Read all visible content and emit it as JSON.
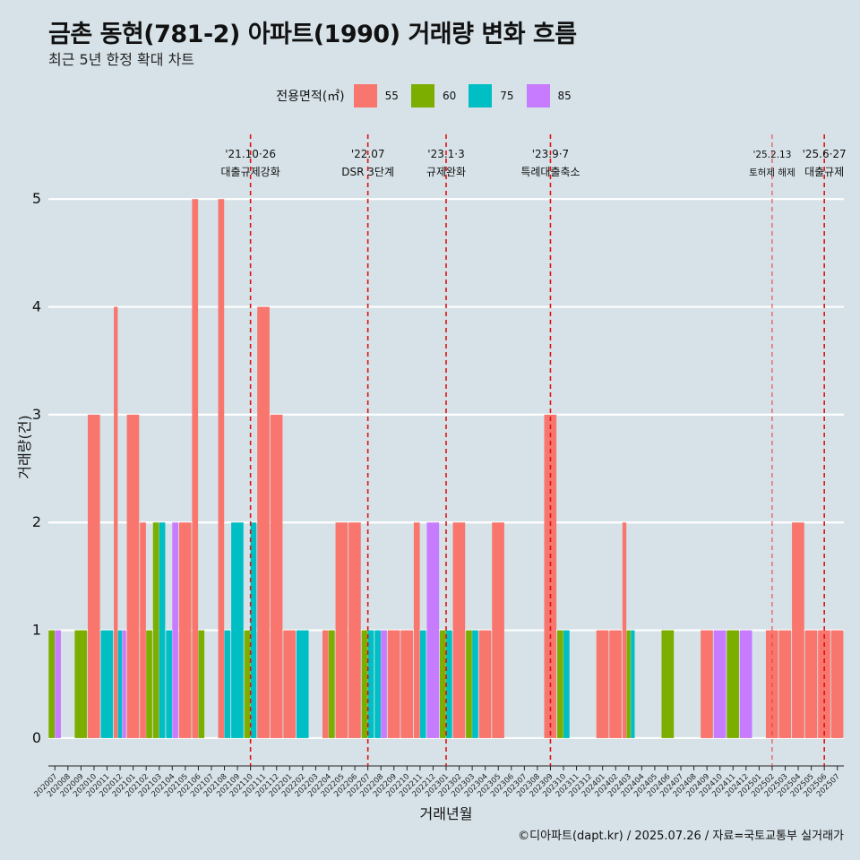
{
  "title": "금촌 동현(781-2) 아파트(1990) 거래량 변화 흐름",
  "subtitle": "최근 5년 한정 확대 차트",
  "caption": "©디아파트(dapt.kr) / 2025.07.26 / 자료=국토교통부 실거래가",
  "legend": {
    "title": "전용면적(㎡)",
    "items": [
      {
        "label": "55",
        "color": "#f8766d"
      },
      {
        "label": "60",
        "color": "#7cae00"
      },
      {
        "label": "75",
        "color": "#00bfc4"
      },
      {
        "label": "85",
        "color": "#c77cff"
      }
    ]
  },
  "chart_data": {
    "type": "bar",
    "title": "금촌 동현(781-2) 아파트(1990) 거래량 변화 흐름",
    "xlabel": "거래년월",
    "ylabel": "거래량(건)",
    "ylim": [
      -0.2,
      5.6
    ],
    "yticks": [
      0,
      1,
      2,
      3,
      4,
      5
    ],
    "categories": [
      "202007",
      "202008",
      "202009",
      "202010",
      "202011",
      "202012",
      "202101",
      "202102",
      "202103",
      "202104",
      "202105",
      "202106",
      "202107",
      "202108",
      "202109",
      "202110",
      "202111",
      "202112",
      "202201",
      "202202",
      "202203",
      "202204",
      "202205",
      "202206",
      "202207",
      "202208",
      "202209",
      "202210",
      "202211",
      "202212",
      "202301",
      "202302",
      "202303",
      "202304",
      "202305",
      "202306",
      "202307",
      "202308",
      "202309",
      "202310",
      "202311",
      "202312",
      "202401",
      "202402",
      "202403",
      "202404",
      "202405",
      "202406",
      "202407",
      "202408",
      "202409",
      "202410",
      "202411",
      "202412",
      "202501",
      "202502",
      "202503",
      "202504",
      "202505",
      "202506",
      "202507"
    ],
    "series": [
      {
        "name": "55",
        "color": "#f8766d",
        "values": [
          0,
          0,
          0,
          3,
          0,
          4,
          3,
          2,
          0,
          0,
          2,
          5,
          0,
          5,
          0,
          0,
          4,
          3,
          1,
          0,
          0,
          1,
          2,
          2,
          0,
          0,
          1,
          1,
          2,
          0,
          0,
          2,
          0,
          1,
          2,
          0,
          0,
          0,
          3,
          0,
          0,
          0,
          1,
          1,
          2,
          0,
          0,
          0,
          0,
          0,
          1,
          0,
          0,
          0,
          0,
          1,
          1,
          2,
          1,
          1,
          1
        ]
      },
      {
        "name": "60",
        "color": "#7cae00",
        "values": [
          1,
          0,
          1,
          0,
          0,
          0,
          0,
          1,
          2,
          0,
          0,
          1,
          0,
          0,
          0,
          1,
          0,
          0,
          0,
          0,
          0,
          1,
          0,
          0,
          1,
          0,
          0,
          0,
          0,
          0,
          1,
          0,
          1,
          0,
          0,
          0,
          0,
          0,
          0,
          1,
          0,
          0,
          0,
          0,
          1,
          0,
          0,
          1,
          0,
          0,
          0,
          0,
          1,
          0,
          0,
          0,
          0,
          0,
          0,
          0,
          0
        ]
      },
      {
        "name": "75",
        "color": "#00bfc4",
        "values": [
          0,
          0,
          0,
          0,
          1,
          1,
          0,
          0,
          2,
          1,
          0,
          0,
          0,
          1,
          2,
          2,
          0,
          0,
          0,
          1,
          0,
          0,
          0,
          0,
          1,
          1,
          0,
          0,
          1,
          0,
          1,
          0,
          1,
          0,
          0,
          0,
          0,
          0,
          0,
          1,
          0,
          0,
          0,
          0,
          1,
          0,
          0,
          0,
          0,
          0,
          0,
          0,
          0,
          0,
          0,
          0,
          0,
          0,
          0,
          0,
          0
        ]
      },
      {
        "name": "85",
        "color": "#c77cff",
        "values": [
          1,
          0,
          0,
          0,
          0,
          1,
          0,
          0,
          0,
          2,
          0,
          0,
          0,
          0,
          0,
          0,
          0,
          0,
          0,
          0,
          0,
          0,
          0,
          0,
          0,
          1,
          0,
          0,
          0,
          2,
          0,
          0,
          0,
          0,
          0,
          0,
          0,
          0,
          0,
          0,
          0,
          0,
          0,
          0,
          0,
          0,
          0,
          0,
          0,
          0,
          0,
          1,
          0,
          1,
          0,
          0,
          0,
          0,
          0,
          0,
          0
        ]
      }
    ],
    "annotations": [
      {
        "month": "202110",
        "date": "'21.10·26",
        "text": "대출규제강화",
        "size": 12
      },
      {
        "month": "202207",
        "date": "'22.07",
        "text": "DSR 3단계",
        "size": 12
      },
      {
        "month": "202301",
        "date": "'23.1·3",
        "text": "규제완화",
        "size": 12
      },
      {
        "month": "202309",
        "date": "'23.9·7",
        "text": "특례대출축소",
        "size": 12
      },
      {
        "month": "202502",
        "date": "'25.2.13",
        "text": "토허제 해제",
        "size": 10.5,
        "thin": true
      },
      {
        "month": "202506",
        "date": "'25.6·27",
        "text": "대출규제",
        "size": 12
      }
    ]
  }
}
